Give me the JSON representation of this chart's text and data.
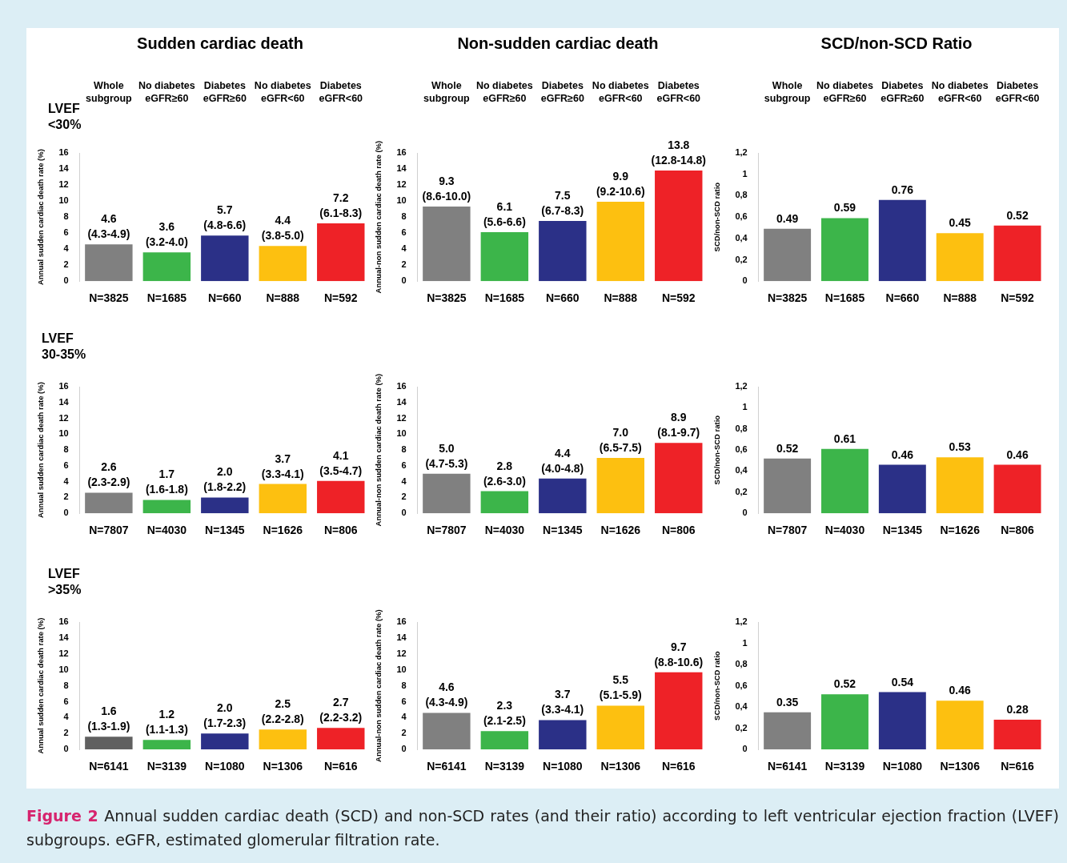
{
  "chart_data": [
    {
      "type": "bar",
      "title": "Sudden cardiac death",
      "subtitle": "LVEF\n<30%",
      "ylabel": "Annual sudden cardiac death rate (%)",
      "categories": [
        "N=3825",
        "N=1685",
        "N=660",
        "N=888",
        "N=592"
      ],
      "values": [
        4.6,
        3.6,
        5.7,
        4.4,
        7.2
      ],
      "value_labels": [
        "4.6\n(4.3-4.9)",
        "3.6\n(3.2-4.0)",
        "5.7\n(4.8-6.6)",
        "4.4\n(3.8-5.0)",
        "7.2\n(6.1-8.3)"
      ],
      "colors": [
        "#808080",
        "#3cb54a",
        "#2b3087",
        "#fdc010",
        "#ee2227"
      ],
      "ylim": [
        0,
        16
      ],
      "yticks": [
        0,
        2,
        4,
        6,
        8,
        10,
        12,
        14,
        16
      ],
      "annotations": [
        "Whole\nsubgroup",
        "No diabetes\neGFR≥60",
        "Diabetes\neGFR≥60",
        "No diabetes\neGFR<60",
        "Diabetes\neGFR<60"
      ]
    },
    {
      "type": "bar",
      "title": "Non-sudden cardiac death",
      "ylabel": "Annual-non sudden cardiac death rate (%)",
      "categories": [
        "N=3825",
        "N=1685",
        "N=660",
        "N=888",
        "N=592"
      ],
      "values": [
        9.3,
        6.1,
        7.5,
        9.9,
        13.8
      ],
      "value_labels": [
        "9.3\n(8.6-10.0)",
        "6.1\n(5.6-6.6)",
        "7.5\n(6.7-8.3)",
        "9.9\n(9.2-10.6)",
        "13.8\n(12.8-14.8)"
      ],
      "colors": [
        "#808080",
        "#3cb54a",
        "#2b3087",
        "#fdc010",
        "#ee2227"
      ],
      "ylim": [
        0,
        16
      ],
      "yticks": [
        0,
        2,
        4,
        6,
        8,
        10,
        12,
        14,
        16
      ],
      "annotations": [
        "Whole\nsubgroup",
        "No diabetes\neGFR≥60",
        "Diabetes\neGFR≥60",
        "No diabetes\neGFR<60",
        "Diabetes\neGFR<60"
      ]
    },
    {
      "type": "bar",
      "title": "SCD/non-SCD Ratio",
      "ylabel": "SCD/non-SCD ratio",
      "categories": [
        "N=3825",
        "N=1685",
        "N=660",
        "N=888",
        "N=592"
      ],
      "values": [
        0.49,
        0.59,
        0.76,
        0.45,
        0.52
      ],
      "value_labels": [
        "0.49",
        "0.59",
        "0.76",
        "0.45",
        "0.52"
      ],
      "colors": [
        "#808080",
        "#3cb54a",
        "#2b3087",
        "#fdc010",
        "#ee2227"
      ],
      "ylim": [
        0,
        1.2
      ],
      "yticks": [
        0,
        {
          "value": 0.2,
          "label": "0,2"
        },
        {
          "value": 0.4,
          "label": "0,4"
        },
        {
          "value": 0.6,
          "label": "0,6"
        },
        {
          "value": 0.8,
          "label": "0,8"
        },
        1,
        {
          "value": 1.2,
          "label": "1,2"
        }
      ],
      "annotations": [
        "Whole\nsubgroup",
        "No diabetes\neGFR≥60",
        "Diabetes\neGFR≥60",
        "No diabetes\neGFR<60",
        "Diabetes\neGFR<60"
      ]
    },
    {
      "type": "bar",
      "subtitle": "LVEF\n30-35%",
      "ylabel": "Annual sudden cardiac death rate (%)",
      "categories": [
        "N=7807",
        "N=4030",
        "N=1345",
        "N=1626",
        "N=806"
      ],
      "values": [
        2.6,
        1.7,
        2.0,
        3.7,
        4.1
      ],
      "value_labels": [
        "2.6\n(2.3-2.9)",
        "1.7\n(1.6-1.8)",
        "2.0\n(1.8-2.2)",
        "3.7\n(3.3-4.1)",
        "4.1\n(3.5-4.7)"
      ],
      "colors": [
        "#808080",
        "#3cb54a",
        "#2b3087",
        "#fdc010",
        "#ee2227"
      ],
      "ylim": [
        0,
        16
      ],
      "yticks": [
        0,
        2,
        4,
        6,
        8,
        10,
        12,
        14,
        16
      ]
    },
    {
      "type": "bar",
      "ylabel": "Annual-non sudden cardiac death rate (%)",
      "categories": [
        "N=7807",
        "N=4030",
        "N=1345",
        "N=1626",
        "N=806"
      ],
      "values": [
        5.0,
        2.8,
        4.4,
        7.0,
        8.9
      ],
      "value_labels": [
        "5.0\n(4.7-5.3)",
        "2.8\n(2.6-3.0)",
        "4.4\n(4.0-4.8)",
        "7.0\n(6.5-7.5)",
        "8.9\n(8.1-9.7)"
      ],
      "colors": [
        "#808080",
        "#3cb54a",
        "#2b3087",
        "#fdc010",
        "#ee2227"
      ],
      "ylim": [
        0,
        16
      ],
      "yticks": [
        0,
        2,
        4,
        6,
        8,
        10,
        12,
        14,
        16
      ]
    },
    {
      "type": "bar",
      "ylabel": "SCD/non-SCD ratio",
      "categories": [
        "N=7807",
        "N=4030",
        "N=1345",
        "N=1626",
        "N=806"
      ],
      "values": [
        0.52,
        0.61,
        0.46,
        0.53,
        0.46
      ],
      "value_labels": [
        "0.52",
        "0.61",
        "0.46",
        "0.53",
        "0.46"
      ],
      "colors": [
        "#808080",
        "#3cb54a",
        "#2b3087",
        "#fdc010",
        "#ee2227"
      ],
      "ylim": [
        0,
        1.2
      ],
      "yticks": [
        0,
        {
          "value": 0.2,
          "label": "0,2"
        },
        {
          "value": 0.4,
          "label": "0,4"
        },
        {
          "value": 0.6,
          "label": "0,6"
        },
        {
          "value": 0.8,
          "label": "0,8"
        },
        1,
        {
          "value": 1.2,
          "label": "1,2"
        }
      ]
    },
    {
      "type": "bar",
      "subtitle": "LVEF\n>35%",
      "ylabel": "Annual sudden cardiac death rate (%)",
      "categories": [
        "N=6141",
        "N=3139",
        "N=1080",
        "N=1306",
        "N=616"
      ],
      "values": [
        1.6,
        1.2,
        2.0,
        2.5,
        2.7
      ],
      "value_labels": [
        "1.6\n(1.3-1.9)",
        "1.2\n(1.1-1.3)",
        "2.0\n(1.7-2.3)",
        "2.5\n(2.2-2.8)",
        "2.7\n(2.2-3.2)"
      ],
      "colors": [
        "#606060",
        "#3cb54a",
        "#2b3087",
        "#fdc010",
        "#ee2227"
      ],
      "ylim": [
        0,
        16
      ],
      "yticks": [
        0,
        2,
        4,
        6,
        8,
        10,
        12,
        14,
        16
      ]
    },
    {
      "type": "bar",
      "ylabel": "Annual-non sudden cardiac death rate (%)",
      "categories": [
        "N=6141",
        "N=3139",
        "N=1080",
        "N=1306",
        "N=616"
      ],
      "values": [
        4.6,
        2.3,
        3.7,
        5.5,
        9.7
      ],
      "value_labels": [
        "4.6\n(4.3-4.9)",
        "2.3\n(2.1-2.5)",
        "3.7\n(3.3-4.1)",
        "5.5\n(5.1-5.9)",
        "9.7\n(8.8-10.6)"
      ],
      "colors": [
        "#808080",
        "#3cb54a",
        "#2b3087",
        "#fdc010",
        "#ee2227"
      ],
      "ylim": [
        0,
        16
      ],
      "yticks": [
        0,
        2,
        4,
        6,
        8,
        10,
        12,
        14,
        16
      ]
    },
    {
      "type": "bar",
      "ylabel": "SCD/non-SCD ratio",
      "categories": [
        "N=6141",
        "N=3139",
        "N=1080",
        "N=1306",
        "N=616"
      ],
      "values": [
        0.35,
        0.52,
        0.54,
        0.46,
        0.28
      ],
      "value_labels": [
        "0.35",
        "0.52",
        "0.54",
        "0.46",
        "0.28"
      ],
      "colors": [
        "#808080",
        "#3cb54a",
        "#2b3087",
        "#fdc010",
        "#ee2227"
      ],
      "ylim": [
        0,
        1.2
      ],
      "yticks": [
        0,
        {
          "value": 0.2,
          "label": "0,2"
        },
        {
          "value": 0.4,
          "label": "0,4"
        },
        {
          "value": 0.6,
          "label": "0,6"
        },
        {
          "value": 0.8,
          "label": "0,8"
        },
        1,
        {
          "value": 1.2,
          "label": "1,2"
        }
      ],
      "annotations": [
        "Figure 2",
        "Annual sudden cardiac death (SCD) and non-SCD rates (and their ratio) according to left ventricular ejection fraction (LVEF) subgroups. eGFR, estimated glomerular filtration rate."
      ]
    }
  ]
}
